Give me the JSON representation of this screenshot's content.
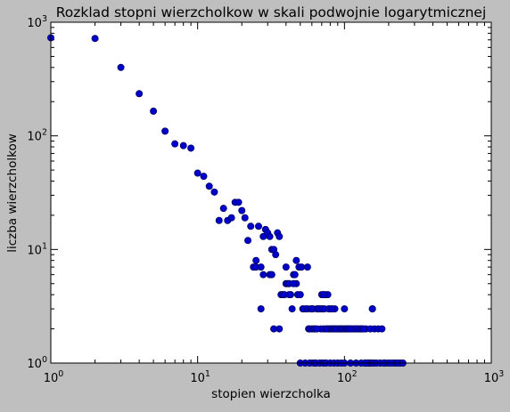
{
  "chart_data": {
    "type": "scatter",
    "title": "Rozklad stopni wierzcholkow w skali podwojnie logarytmicznej",
    "xlabel": "stopien wierzcholka",
    "ylabel": "liczba wierzcholkow",
    "xscale": "log",
    "yscale": "log",
    "xlim": [
      1,
      1000
    ],
    "ylim": [
      1,
      1000
    ],
    "grid": false,
    "marker_color": "#0000cc",
    "marker_edge_color": "#000066",
    "background_color": "#bfbfbf",
    "x_ticks": [
      {
        "base": "10",
        "exp": "0"
      },
      {
        "base": "10",
        "exp": "1"
      },
      {
        "base": "10",
        "exp": "2"
      },
      {
        "base": "10",
        "exp": "3"
      }
    ],
    "y_ticks": [
      {
        "base": "10",
        "exp": "0"
      },
      {
        "base": "10",
        "exp": "1"
      },
      {
        "base": "10",
        "exp": "2"
      },
      {
        "base": "10",
        "exp": "3"
      }
    ],
    "x": [
      1,
      2,
      3,
      4,
      5,
      6,
      7,
      8,
      9,
      10,
      11,
      12,
      13,
      14,
      15,
      16,
      17,
      18,
      19,
      20,
      21,
      22,
      23,
      24,
      25,
      25,
      26,
      27,
      28,
      29,
      30,
      31,
      32,
      33,
      34,
      35,
      36,
      37,
      38,
      39,
      40,
      41,
      42,
      43,
      45,
      46,
      48,
      50,
      52,
      55,
      57,
      58,
      60,
      62,
      65,
      68,
      70,
      72,
      75,
      78,
      80,
      85,
      90,
      95,
      100,
      105,
      110,
      115,
      120,
      125,
      130,
      140,
      150,
      155,
      160,
      170,
      180,
      190,
      200,
      220,
      240,
      31,
      36,
      44,
      47,
      49,
      51,
      53,
      56,
      59,
      61,
      63,
      66,
      67,
      69,
      71,
      73,
      74,
      76,
      77,
      79,
      81,
      82,
      83,
      84,
      86,
      87,
      88,
      92,
      94,
      96,
      98,
      102,
      104,
      106,
      108,
      112,
      118,
      122,
      128,
      132,
      135,
      138,
      145,
      148,
      152,
      158,
      165,
      175,
      185,
      210,
      230,
      250,
      50,
      54,
      58,
      62,
      64,
      68,
      72,
      75,
      80,
      85,
      90,
      95,
      100,
      110,
      120,
      130,
      140,
      60,
      65,
      70,
      72,
      78,
      82,
      100,
      155,
      32,
      42,
      40,
      45,
      47,
      56,
      27,
      33,
      28
    ],
    "y": [
      730,
      720,
      400,
      235,
      165,
      110,
      85,
      82,
      78,
      47,
      44,
      36,
      32,
      18,
      23,
      18,
      19,
      26,
      26,
      22,
      19,
      12,
      16,
      7,
      8,
      7,
      16,
      7,
      13,
      15,
      14,
      13,
      10,
      10,
      9,
      14,
      13,
      4,
      4,
      4,
      5,
      5,
      5,
      4,
      6,
      6,
      4,
      4,
      3,
      3,
      2,
      2,
      2,
      2,
      3,
      3,
      3,
      2,
      2,
      2,
      2,
      2,
      2,
      2,
      2,
      2,
      2,
      2,
      2,
      2,
      2,
      2,
      2,
      3,
      2,
      2,
      2,
      1,
      1,
      1,
      1,
      6,
      2,
      3,
      5,
      7,
      7,
      3,
      3,
      3,
      3,
      2,
      3,
      3,
      2,
      3,
      3,
      4,
      2,
      4,
      3,
      2,
      3,
      2,
      2,
      3,
      2,
      2,
      2,
      2,
      2,
      2,
      2,
      2,
      2,
      2,
      2,
      2,
      2,
      2,
      2,
      2,
      1,
      1,
      1,
      1,
      1,
      1,
      1,
      1,
      1,
      1,
      1,
      1,
      1,
      1,
      1,
      1,
      1,
      1,
      1,
      1,
      1,
      1,
      1,
      1,
      1,
      1,
      1,
      1,
      3,
      2,
      4,
      4,
      3,
      3,
      3,
      3,
      6,
      4,
      7,
      5,
      8,
      7,
      3,
      2,
      6
    ]
  }
}
